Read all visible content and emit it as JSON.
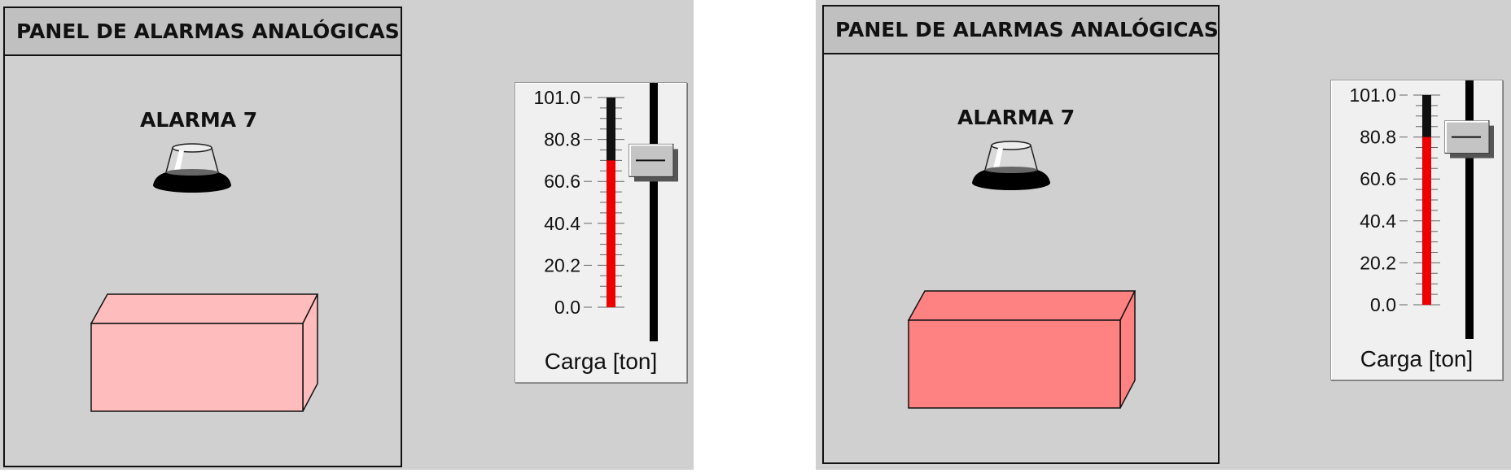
{
  "scenes": [
    {
      "panel": {
        "title": "PANEL DE ALARMAS ANALÓGICAS",
        "alarm_label": "ALARMA 7",
        "box_color": "#ffbcbc"
      },
      "slider": {
        "label": "Carga [ton]",
        "ticks": [
          "101.0",
          "80.8",
          "60.6",
          "40.4",
          "20.2",
          "0.0"
        ],
        "min": 0,
        "max": 101.0,
        "value": 70.7,
        "fill_color": "#ee0000",
        "empty_color": "#111111"
      }
    },
    {
      "panel": {
        "title": "PANEL DE ALARMAS ANALÓGICAS",
        "alarm_label": "ALARMA 7",
        "box_color": "#ff8282"
      },
      "slider": {
        "label": "Carga [ton]",
        "ticks": [
          "101.0",
          "80.8",
          "60.6",
          "40.4",
          "20.2",
          "0.0"
        ],
        "min": 0,
        "max": 101.0,
        "value": 80.8,
        "fill_color": "#ee0000",
        "empty_color": "#111111"
      }
    }
  ]
}
